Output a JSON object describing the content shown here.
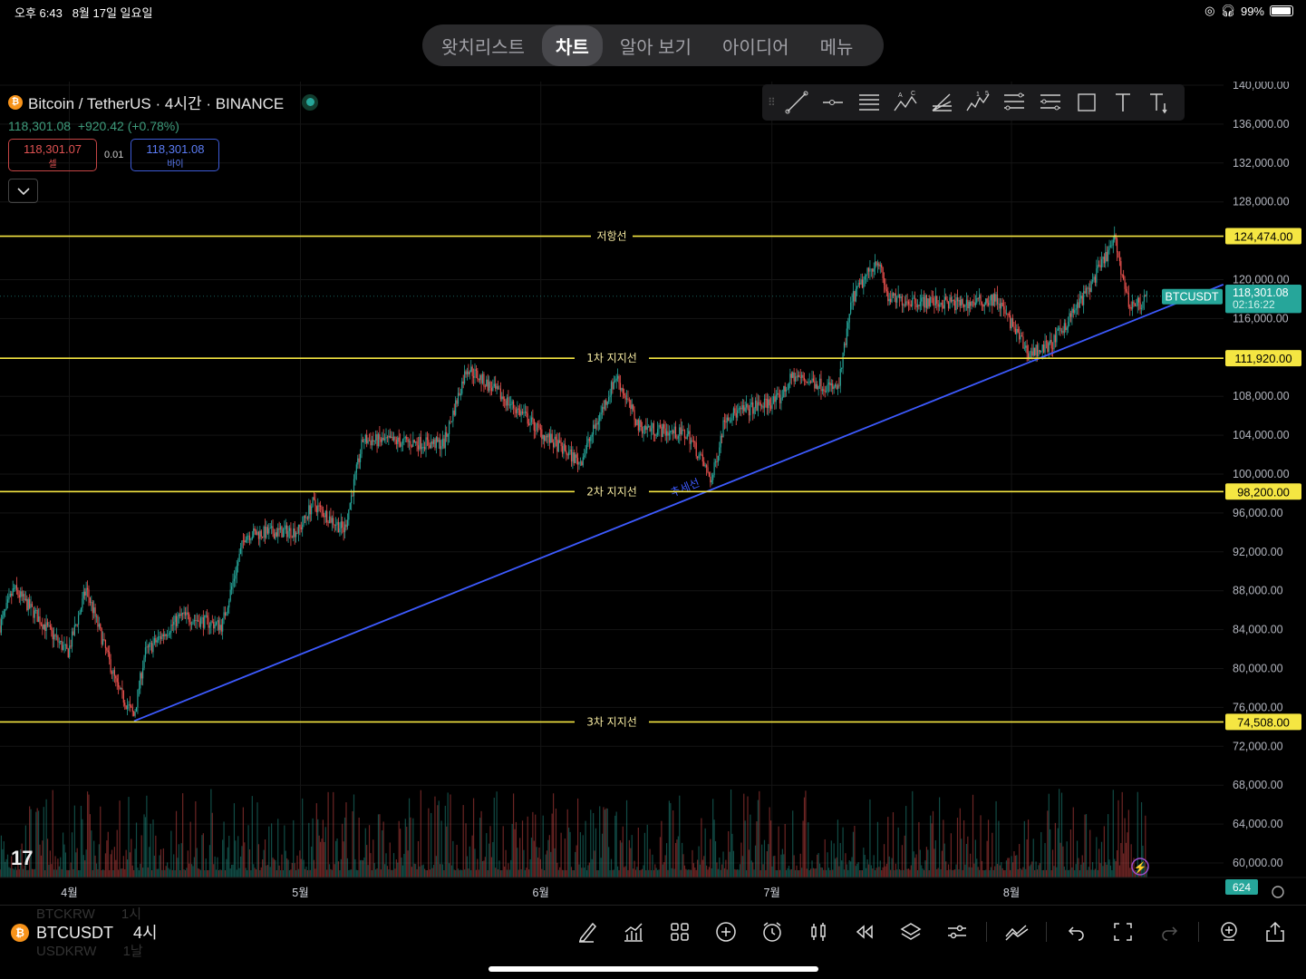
{
  "status": {
    "time": "오후 6:43",
    "date": "8월 17일 일요일",
    "battery": "99%"
  },
  "nav": {
    "tabs": [
      "왓치리스트",
      "차트",
      "알아 보기",
      "아이디어",
      "메뉴"
    ],
    "active": 1
  },
  "legend": {
    "title": "Bitcoin / TetherUS · 4시간 · BINANCE",
    "price": "118,301.08",
    "change": "+920.42 (+0.78%)",
    "sell_price": "118,301.07",
    "sell_label": "셀",
    "spread": "0.01",
    "buy_price": "118,301.08",
    "buy_label": "바이"
  },
  "colors": {
    "up": "#26a69a",
    "down": "#ef5350",
    "level": "#f5e642",
    "trend": "#3d5afe",
    "bg": "#000000"
  },
  "price_axis": {
    "ticks": [
      140000,
      136000,
      132000,
      128000,
      120000,
      116000,
      108000,
      104000,
      100000,
      96000,
      92000,
      88000,
      84000,
      80000,
      76000,
      72000,
      68000,
      64000,
      60000
    ],
    "last_symbol": "BTCUSDT",
    "last_price": "118,301.08",
    "countdown": "02:16:22",
    "volume_label": "624"
  },
  "time_axis": {
    "labels": [
      {
        "day": 9,
        "label": "4월"
      },
      {
        "day": 39,
        "label": "5월"
      },
      {
        "day": 70.2,
        "label": "6월"
      },
      {
        "day": 100.2,
        "label": "7월"
      },
      {
        "day": 131.3,
        "label": "8월"
      }
    ]
  },
  "levels": [
    {
      "name": "저항선",
      "price": 124474,
      "label": "124,474.00"
    },
    {
      "name": "1차 지지선",
      "price": 111920,
      "label": "111,920.00"
    },
    {
      "name": "2차 지지선",
      "price": 98200,
      "label": "98,200.00"
    },
    {
      "name": "3차 지지선",
      "price": 74508,
      "label": "74,508.00"
    }
  ],
  "trendline": {
    "label": "추세선",
    "start": [
      17.4,
      74600
    ],
    "end": [
      158.8,
      119500
    ]
  },
  "chart_data": {
    "type": "candlestick",
    "symbol": "BTCUSDT",
    "interval": "4h",
    "ylim": [
      58000,
      141000
    ],
    "price_path": [
      [
        0,
        84400
      ],
      [
        1.8,
        88200
      ],
      [
        8.8,
        81600
      ],
      [
        11.2,
        88200
      ],
      [
        15.3,
        77900
      ],
      [
        17.4,
        75100
      ],
      [
        18.8,
        81600
      ],
      [
        23.5,
        85400
      ],
      [
        28.8,
        84400
      ],
      [
        31.8,
        93800
      ],
      [
        38.8,
        94200
      ],
      [
        40.6,
        97000
      ],
      [
        44.7,
        94200
      ],
      [
        47.1,
        103500
      ],
      [
        57.6,
        103100
      ],
      [
        60.6,
        111000
      ],
      [
        68.2,
        105900
      ],
      [
        70.6,
        104000
      ],
      [
        75.3,
        101200
      ],
      [
        80,
        110100
      ],
      [
        82.9,
        104900
      ],
      [
        89.4,
        104000
      ],
      [
        92.4,
        99300
      ],
      [
        94.1,
        105900
      ],
      [
        101.2,
        107700
      ],
      [
        102.9,
        110100
      ],
      [
        108.8,
        108700
      ],
      [
        110.6,
        118000
      ],
      [
        113.9,
        122200
      ],
      [
        115.3,
        118000
      ],
      [
        125,
        117500
      ],
      [
        129.4,
        118000
      ],
      [
        133.5,
        112400
      ],
      [
        136.5,
        113300
      ],
      [
        141.2,
        118900
      ],
      [
        144.7,
        124100
      ],
      [
        146.5,
        117500
      ],
      [
        148,
        117500
      ],
      [
        148.9,
        118301
      ]
    ]
  },
  "bottom": {
    "symbol": "BTCUSDT",
    "interval": "4시",
    "prev_symbol": "BTCKRW",
    "prev_interval": "1시",
    "next_symbol": "USDKRW",
    "next_interval": "1날"
  }
}
